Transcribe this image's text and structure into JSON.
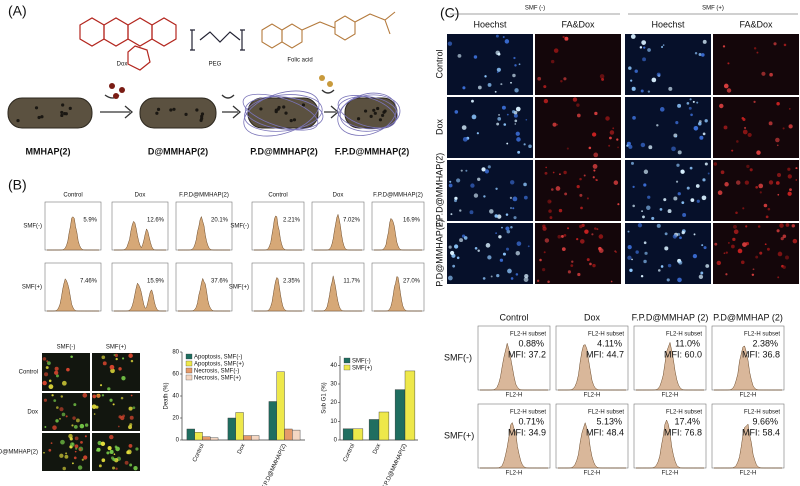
{
  "panel_a": {
    "label": "(A)",
    "molecules": [
      "Dox",
      "PEG",
      "Folic acid"
    ],
    "steps": [
      "MMHAP(2)",
      "D@MMHAP(2)",
      "P.D@MMHAP(2)",
      "F.P.D@MMHAP(2)"
    ]
  },
  "panel_b": {
    "label": "(B)",
    "flow_left": {
      "columns": [
        "Control",
        "Dox",
        "F.P.D@MMHAP(2)"
      ],
      "rows": [
        "SMF(-)",
        "SMF(+)"
      ],
      "values": [
        [
          "5.9%",
          "12.6%",
          "20.1%"
        ],
        [
          "7.46%",
          "15.9%",
          "37.6%"
        ]
      ]
    },
    "flow_right": {
      "columns": [
        "Control",
        "Dox",
        "F.P.D@MMHAP(2)"
      ],
      "rows": [
        "SMF(-)",
        "SMF(+)"
      ],
      "values": [
        [
          "2.21%",
          "7.02%",
          "16.9%"
        ],
        [
          "2.35%",
          "11.7%",
          "27.0%"
        ]
      ]
    },
    "microscopy": {
      "columns": [
        "SMF(-)",
        "SMF(+)"
      ],
      "rows": [
        "Control",
        "Dox",
        "F.P.D@MMHAP(2)"
      ]
    },
    "death_chart": {
      "type": "bar",
      "y_label": "Death (%)",
      "categories": [
        "Control",
        "Dox",
        "F.P.D@MMHAP(2)"
      ],
      "series": [
        {
          "name": "Apoptosis, SMF(-)",
          "color": "#1f6e60",
          "values": [
            10,
            20,
            35
          ]
        },
        {
          "name": "Apoptosis, SMF(+)",
          "color": "#eee84a",
          "values": [
            7,
            25,
            62
          ]
        },
        {
          "name": "Necrosis, SMF(-)",
          "color": "#e59a6a",
          "values": [
            3,
            4,
            10
          ]
        },
        {
          "name": "Necrosis, SMF(+)",
          "color": "#f4d6c2",
          "values": [
            2,
            4,
            9
          ]
        }
      ],
      "ylim": [
        0,
        80
      ],
      "yticks": [
        0,
        20,
        40,
        60,
        80
      ]
    },
    "subg1_chart": {
      "type": "bar",
      "y_label": "Sub G1 (%)",
      "categories": [
        "Control",
        "Dox",
        "F.P.D@MMHAP(2)"
      ],
      "series": [
        {
          "name": "SMF(-)",
          "color": "#1f6e60",
          "values": [
            6,
            11,
            27
          ]
        },
        {
          "name": "SMF(+)",
          "color": "#eee84a",
          "values": [
            6,
            15,
            37
          ]
        }
      ],
      "ylim": [
        0,
        45
      ],
      "yticks": [
        0,
        10,
        20,
        30,
        40
      ]
    }
  },
  "panel_c": {
    "label": "(C)",
    "groups": [
      "SMF (-)",
      "SMF (+)"
    ],
    "stains": [
      "Hoechst",
      "FA&Dox",
      "Hoechst",
      "FA&Dox"
    ],
    "rows": [
      "Control",
      "Dox",
      "F.P.D@MMHAP(2)",
      "P.D@MMHAP(2)"
    ],
    "flow": {
      "columns": [
        "Control",
        "Dox",
        "F.P.D@MMHAP (2)",
        "P.D@MMHAP (2)"
      ],
      "rows": [
        "SMF(-)",
        "SMF(+)"
      ],
      "gate": "FL2-H subset",
      "x_label": "FL2-H",
      "percent": [
        [
          "0.88%",
          "4.11%",
          "11.0%",
          "2.38%"
        ],
        [
          "0.71%",
          "5.13%",
          "17.4%",
          "9.66%"
        ]
      ],
      "mfi": [
        [
          "MFI: 37.2",
          "MFI: 44.7",
          "MFI: 60.0",
          "MFI: 36.8"
        ],
        [
          "MFI: 34.9",
          "MFI: 48.4",
          "MFI: 76.8",
          "MFI: 58.4"
        ]
      ]
    }
  }
}
